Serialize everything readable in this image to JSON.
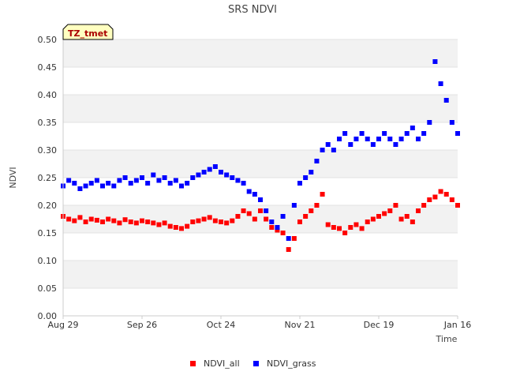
{
  "chart_data": {
    "type": "scatter",
    "title": "SRS NDVI",
    "xlabel": "Time",
    "ylabel": "NDVI",
    "ylim": [
      0,
      0.5
    ],
    "yticks": [
      0.0,
      0.05,
      0.1,
      0.15,
      0.2,
      0.25,
      0.3,
      0.35,
      0.4,
      0.45,
      0.5
    ],
    "ytick_labels": [
      "0.00",
      "0.05",
      "0.10",
      "0.15",
      "0.20",
      "0.25",
      "0.30",
      "0.35",
      "0.40",
      "0.45",
      "0.50"
    ],
    "xlim": [
      "2020-08-29",
      "2021-01-16"
    ],
    "xticks": [
      "2020-08-29",
      "2020-09-26",
      "2020-10-24",
      "2020-11-21",
      "2020-12-19",
      "2021-01-16"
    ],
    "xtick_labels": [
      "Aug 29",
      "Sep 26",
      "Oct 24",
      "Nov 21",
      "Dec 19",
      "Jan 16"
    ],
    "grid": "horizontal alternating bands",
    "legend_position": "bottom",
    "annotation": "TZ_tmet",
    "series": [
      {
        "name": "NDVI_all",
        "color": "#ff0000",
        "points": [
          [
            "2020-08-29",
            0.18
          ],
          [
            "2020-08-31",
            0.175
          ],
          [
            "2020-09-02",
            0.172
          ],
          [
            "2020-09-04",
            0.178
          ],
          [
            "2020-09-06",
            0.17
          ],
          [
            "2020-09-08",
            0.175
          ],
          [
            "2020-09-10",
            0.173
          ],
          [
            "2020-09-12",
            0.17
          ],
          [
            "2020-09-14",
            0.175
          ],
          [
            "2020-09-16",
            0.172
          ],
          [
            "2020-09-18",
            0.168
          ],
          [
            "2020-09-20",
            0.174
          ],
          [
            "2020-09-22",
            0.17
          ],
          [
            "2020-09-24",
            0.168
          ],
          [
            "2020-09-26",
            0.172
          ],
          [
            "2020-09-28",
            0.17
          ],
          [
            "2020-09-30",
            0.168
          ],
          [
            "2020-10-02",
            0.165
          ],
          [
            "2020-10-04",
            0.168
          ],
          [
            "2020-10-06",
            0.162
          ],
          [
            "2020-10-08",
            0.16
          ],
          [
            "2020-10-10",
            0.158
          ],
          [
            "2020-10-12",
            0.162
          ],
          [
            "2020-10-14",
            0.17
          ],
          [
            "2020-10-16",
            0.172
          ],
          [
            "2020-10-18",
            0.175
          ],
          [
            "2020-10-20",
            0.178
          ],
          [
            "2020-10-22",
            0.172
          ],
          [
            "2020-10-24",
            0.17
          ],
          [
            "2020-10-26",
            0.168
          ],
          [
            "2020-10-28",
            0.172
          ],
          [
            "2020-10-30",
            0.18
          ],
          [
            "2020-11-01",
            0.19
          ],
          [
            "2020-11-03",
            0.185
          ],
          [
            "2020-11-05",
            0.175
          ],
          [
            "2020-11-07",
            0.19
          ],
          [
            "2020-11-09",
            0.175
          ],
          [
            "2020-11-11",
            0.16
          ],
          [
            "2020-11-13",
            0.155
          ],
          [
            "2020-11-15",
            0.15
          ],
          [
            "2020-11-17",
            0.12
          ],
          [
            "2020-11-19",
            0.14
          ],
          [
            "2020-11-21",
            0.17
          ],
          [
            "2020-11-23",
            0.18
          ],
          [
            "2020-11-25",
            0.19
          ],
          [
            "2020-11-27",
            0.2
          ],
          [
            "2020-11-29",
            0.22
          ],
          [
            "2020-12-01",
            0.165
          ],
          [
            "2020-12-03",
            0.16
          ],
          [
            "2020-12-05",
            0.158
          ],
          [
            "2020-12-07",
            0.15
          ],
          [
            "2020-12-09",
            0.16
          ],
          [
            "2020-12-11",
            0.165
          ],
          [
            "2020-12-13",
            0.158
          ],
          [
            "2020-12-15",
            0.17
          ],
          [
            "2020-12-17",
            0.175
          ],
          [
            "2020-12-19",
            0.18
          ],
          [
            "2020-12-21",
            0.185
          ],
          [
            "2020-12-23",
            0.19
          ],
          [
            "2020-12-25",
            0.2
          ],
          [
            "2020-12-27",
            0.175
          ],
          [
            "2020-12-29",
            0.18
          ],
          [
            "2020-12-31",
            0.17
          ],
          [
            "2021-01-02",
            0.19
          ],
          [
            "2021-01-04",
            0.2
          ],
          [
            "2021-01-06",
            0.21
          ],
          [
            "2021-01-08",
            0.215
          ],
          [
            "2021-01-10",
            0.225
          ],
          [
            "2021-01-12",
            0.22
          ],
          [
            "2021-01-14",
            0.21
          ],
          [
            "2021-01-16",
            0.2
          ]
        ]
      },
      {
        "name": "NDVI_grass",
        "color": "#0000ff",
        "points": [
          [
            "2020-08-29",
            0.235
          ],
          [
            "2020-08-31",
            0.245
          ],
          [
            "2020-09-02",
            0.24
          ],
          [
            "2020-09-04",
            0.23
          ],
          [
            "2020-09-06",
            0.235
          ],
          [
            "2020-09-08",
            0.24
          ],
          [
            "2020-09-10",
            0.245
          ],
          [
            "2020-09-12",
            0.235
          ],
          [
            "2020-09-14",
            0.24
          ],
          [
            "2020-09-16",
            0.235
          ],
          [
            "2020-09-18",
            0.245
          ],
          [
            "2020-09-20",
            0.25
          ],
          [
            "2020-09-22",
            0.24
          ],
          [
            "2020-09-24",
            0.245
          ],
          [
            "2020-09-26",
            0.25
          ],
          [
            "2020-09-28",
            0.24
          ],
          [
            "2020-09-30",
            0.255
          ],
          [
            "2020-10-02",
            0.245
          ],
          [
            "2020-10-04",
            0.25
          ],
          [
            "2020-10-06",
            0.24
          ],
          [
            "2020-10-08",
            0.245
          ],
          [
            "2020-10-10",
            0.235
          ],
          [
            "2020-10-12",
            0.24
          ],
          [
            "2020-10-14",
            0.25
          ],
          [
            "2020-10-16",
            0.255
          ],
          [
            "2020-10-18",
            0.26
          ],
          [
            "2020-10-20",
            0.265
          ],
          [
            "2020-10-22",
            0.27
          ],
          [
            "2020-10-24",
            0.26
          ],
          [
            "2020-10-26",
            0.255
          ],
          [
            "2020-10-28",
            0.25
          ],
          [
            "2020-10-30",
            0.245
          ],
          [
            "2020-11-01",
            0.24
          ],
          [
            "2020-11-03",
            0.225
          ],
          [
            "2020-11-05",
            0.22
          ],
          [
            "2020-11-07",
            0.21
          ],
          [
            "2020-11-09",
            0.19
          ],
          [
            "2020-11-11",
            0.17
          ],
          [
            "2020-11-13",
            0.16
          ],
          [
            "2020-11-15",
            0.18
          ],
          [
            "2020-11-17",
            0.14
          ],
          [
            "2020-11-19",
            0.2
          ],
          [
            "2020-11-21",
            0.24
          ],
          [
            "2020-11-23",
            0.25
          ],
          [
            "2020-11-25",
            0.26
          ],
          [
            "2020-11-27",
            0.28
          ],
          [
            "2020-11-29",
            0.3
          ],
          [
            "2020-12-01",
            0.31
          ],
          [
            "2020-12-03",
            0.3
          ],
          [
            "2020-12-05",
            0.32
          ],
          [
            "2020-12-07",
            0.33
          ],
          [
            "2020-12-09",
            0.31
          ],
          [
            "2020-12-11",
            0.32
          ],
          [
            "2020-12-13",
            0.33
          ],
          [
            "2020-12-15",
            0.32
          ],
          [
            "2020-12-17",
            0.31
          ],
          [
            "2020-12-19",
            0.32
          ],
          [
            "2020-12-21",
            0.33
          ],
          [
            "2020-12-23",
            0.32
          ],
          [
            "2020-12-25",
            0.31
          ],
          [
            "2020-12-27",
            0.32
          ],
          [
            "2020-12-29",
            0.33
          ],
          [
            "2020-12-31",
            0.34
          ],
          [
            "2021-01-02",
            0.32
          ],
          [
            "2021-01-04",
            0.33
          ],
          [
            "2021-01-06",
            0.35
          ],
          [
            "2021-01-08",
            0.46
          ],
          [
            "2021-01-10",
            0.42
          ],
          [
            "2021-01-12",
            0.39
          ],
          [
            "2021-01-14",
            0.35
          ],
          [
            "2021-01-16",
            0.33
          ]
        ]
      }
    ]
  }
}
